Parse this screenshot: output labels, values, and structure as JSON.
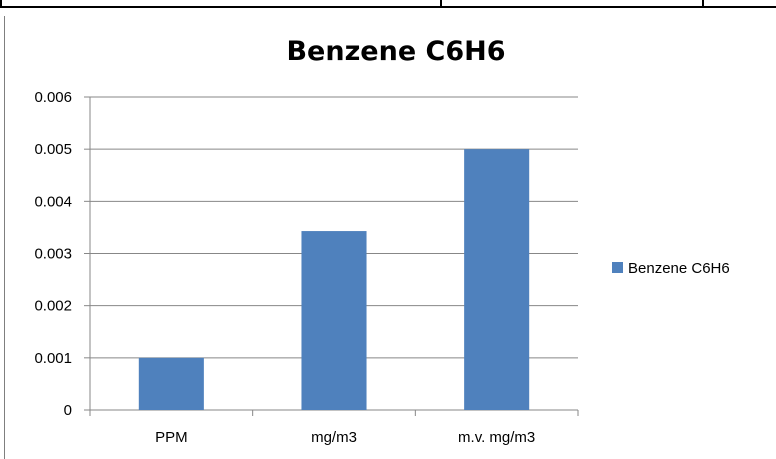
{
  "chart_data": {
    "type": "bar",
    "title": "Benzene  C6H6",
    "xlabel": "",
    "ylabel": "",
    "categories": [
      "PPM",
      "mg/m3",
      "m.v. mg/m3"
    ],
    "series": [
      {
        "name": "Benzene  C6H6",
        "values": [
          0.001,
          0.00343,
          0.005
        ],
        "color": "#4f81bd"
      }
    ],
    "ylim": [
      0,
      0.006
    ],
    "yticks": [
      "0",
      "0.001",
      "0.002",
      "0.003",
      "0.004",
      "0.005",
      "0.006"
    ],
    "grid": true,
    "legend_position": "right",
    "colors": {
      "bar": "#4f81bd",
      "grid": "#878787",
      "axis": "#878787"
    }
  }
}
